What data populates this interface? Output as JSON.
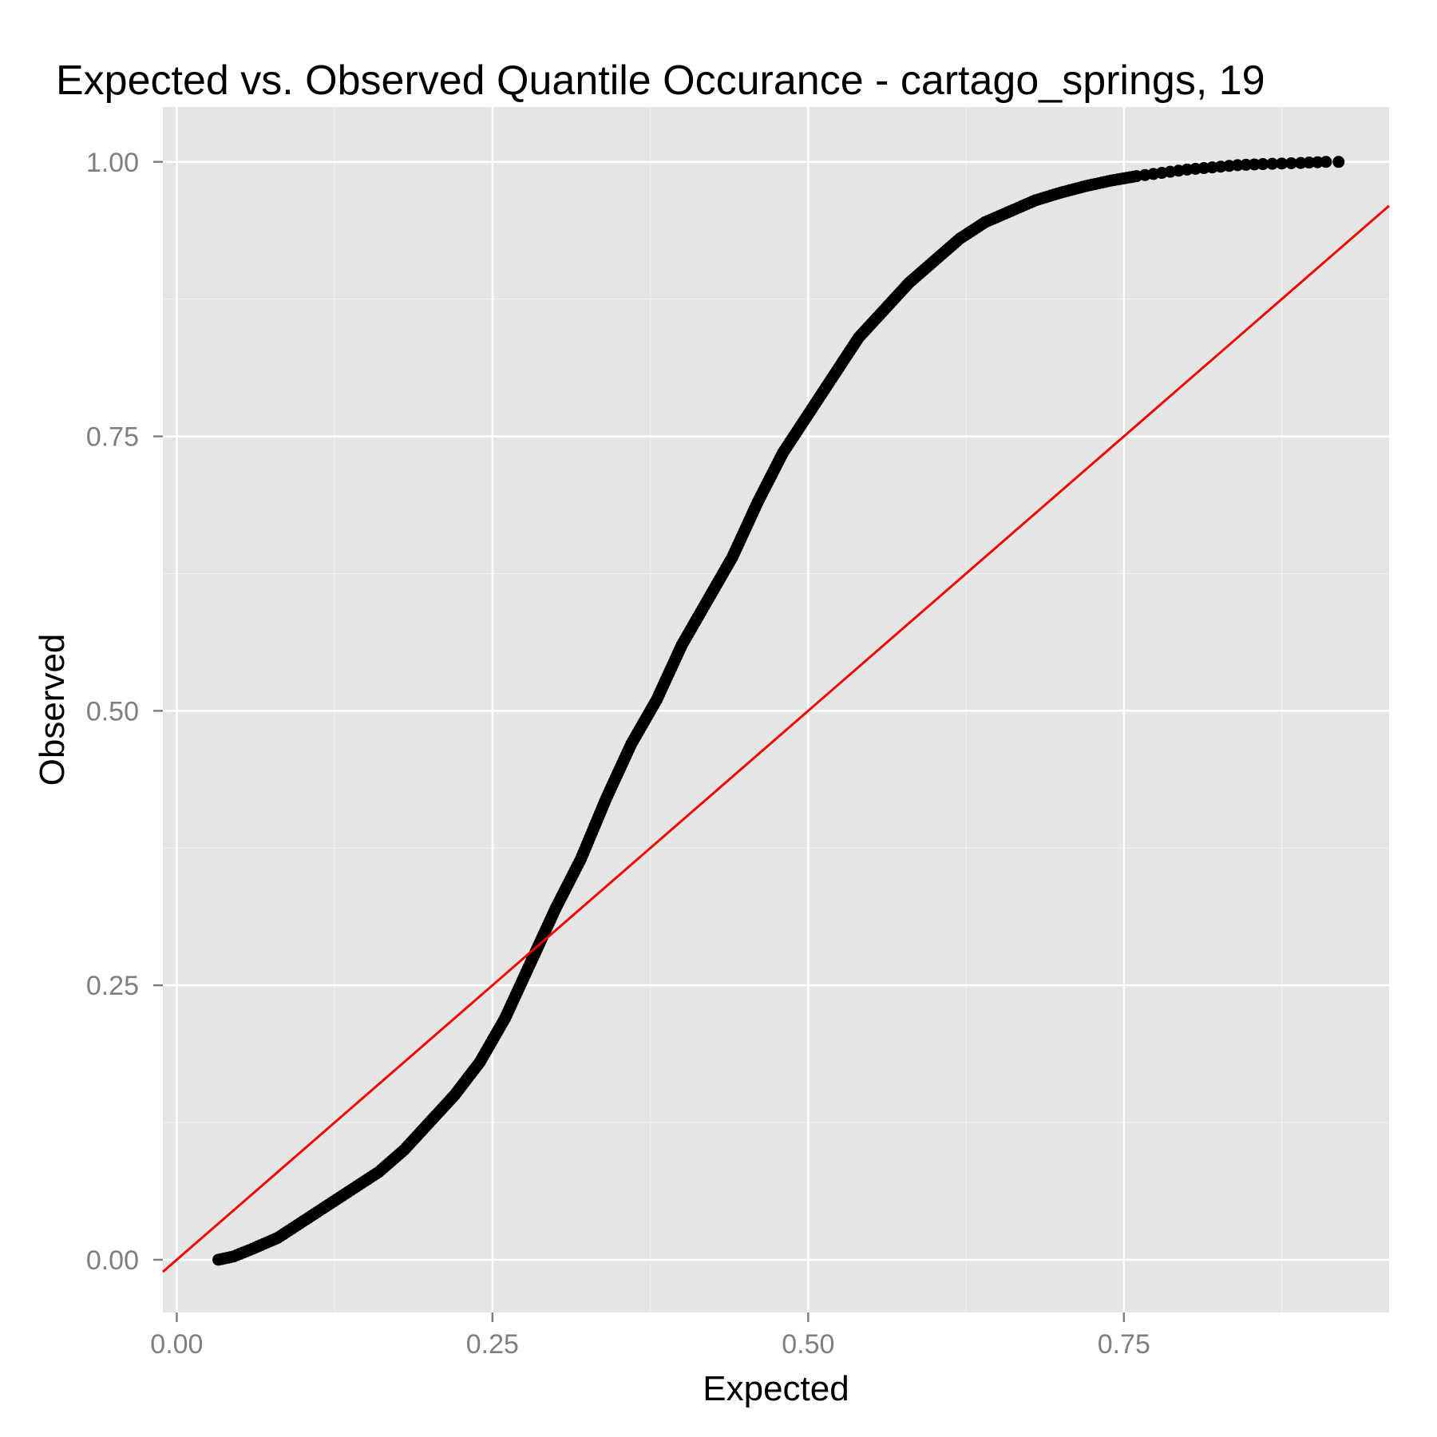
{
  "chart_data": {
    "type": "scatter",
    "title": "Expected vs. Observed Quantile Occurance - cartago_springs, 19",
    "xlabel": "Expected",
    "ylabel": "Observed",
    "xlim": [
      -0.011,
      0.96
    ],
    "ylim": [
      -0.048,
      1.05
    ],
    "x_ticks": [
      0,
      0.25,
      0.5,
      0.75
    ],
    "x_tick_labels": [
      "0.00",
      "0.25",
      "0.50",
      "0.75"
    ],
    "y_ticks": [
      0,
      0.25,
      0.5,
      0.75,
      1
    ],
    "y_tick_labels": [
      "0.00",
      "0.25",
      "0.50",
      "0.75",
      "1.00"
    ],
    "grid": true,
    "colors": {
      "points": "#000000",
      "reference_line": "#ee0000",
      "panel": "#e5e5e5",
      "grid": "#ffffff"
    },
    "reference_line": {
      "type": "identity",
      "slope": 1,
      "intercept": 0
    },
    "series": [
      {
        "x": [
          0.033,
          0.045,
          0.06,
          0.08,
          0.1,
          0.12,
          0.14,
          0.16,
          0.18,
          0.2,
          0.22,
          0.24,
          0.26,
          0.28,
          0.3,
          0.32,
          0.34,
          0.36,
          0.38,
          0.4,
          0.42,
          0.44,
          0.46,
          0.48,
          0.5,
          0.52,
          0.54,
          0.56,
          0.58,
          0.6,
          0.62,
          0.64,
          0.66,
          0.68,
          0.7,
          0.72,
          0.74,
          0.76,
          0.78,
          0.8,
          0.82,
          0.84,
          0.86,
          0.89,
          0.91,
          0.92
        ],
        "y": [
          0.0,
          0.003,
          0.01,
          0.02,
          0.035,
          0.05,
          0.065,
          0.08,
          0.1,
          0.125,
          0.15,
          0.18,
          0.22,
          0.27,
          0.32,
          0.365,
          0.42,
          0.47,
          0.51,
          0.56,
          0.6,
          0.64,
          0.69,
          0.735,
          0.77,
          0.805,
          0.84,
          0.865,
          0.89,
          0.91,
          0.93,
          0.945,
          0.955,
          0.965,
          0.972,
          0.978,
          0.983,
          0.987,
          0.99,
          0.993,
          0.995,
          0.997,
          0.998,
          0.999,
          1.0,
          1.0
        ]
      }
    ]
  }
}
